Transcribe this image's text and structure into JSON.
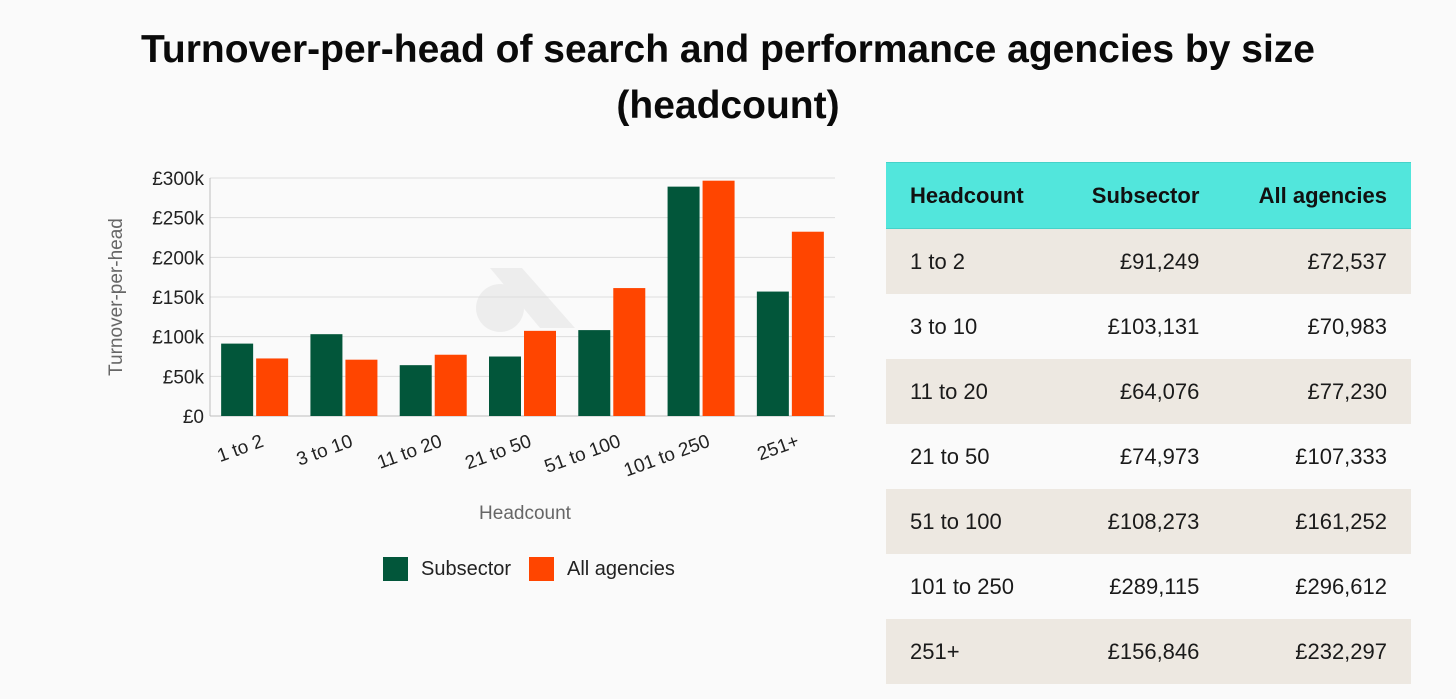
{
  "title": {
    "line1": "Turnover-per-head of search and performance agencies by size",
    "line2": "(headcount)"
  },
  "chart_data": {
    "type": "bar",
    "categories": [
      "1 to 2",
      "3 to 10",
      "11 to 20",
      "21 to 50",
      "51 to 100",
      "101 to 250",
      "251+"
    ],
    "series": [
      {
        "name": "Subsector",
        "color": "#02563a",
        "values": [
          91249,
          103131,
          64076,
          74973,
          108273,
          289115,
          156846
        ]
      },
      {
        "name": "All agencies",
        "color": "#ff4500",
        "values": [
          72537,
          70983,
          77230,
          107333,
          161252,
          296612,
          232297
        ]
      }
    ],
    "ylim": [
      0,
      300000
    ],
    "yticks": [
      0,
      50000,
      100000,
      150000,
      200000,
      250000,
      300000
    ],
    "ytick_labels": [
      "£0",
      "£50k",
      "£100k",
      "£150k",
      "£200k",
      "£250k",
      "£300k"
    ],
    "xlabel": "Headcount",
    "ylabel": "Turnover-per-head",
    "legend_position": "bottom",
    "grid": true
  },
  "table": {
    "headers": [
      "Headcount",
      "Subsector",
      "All agencies"
    ],
    "rows": [
      [
        "1 to 2",
        "£91,249",
        "£72,537"
      ],
      [
        "3 to 10",
        "£103,131",
        "£70,983"
      ],
      [
        "11 to 20",
        "£64,076",
        "£77,230"
      ],
      [
        "21 to 50",
        "£74,973",
        "£107,333"
      ],
      [
        "51 to 100",
        "£108,273",
        "£161,252"
      ],
      [
        "101 to 250",
        "£289,115",
        "£296,612"
      ],
      [
        "251+",
        "£156,846",
        "£232,297"
      ]
    ]
  },
  "colors": {
    "subsector": "#02563a",
    "all_agencies": "#ff4500",
    "table_header": "#52e6dc",
    "table_row_alt": "#ede8e1"
  }
}
